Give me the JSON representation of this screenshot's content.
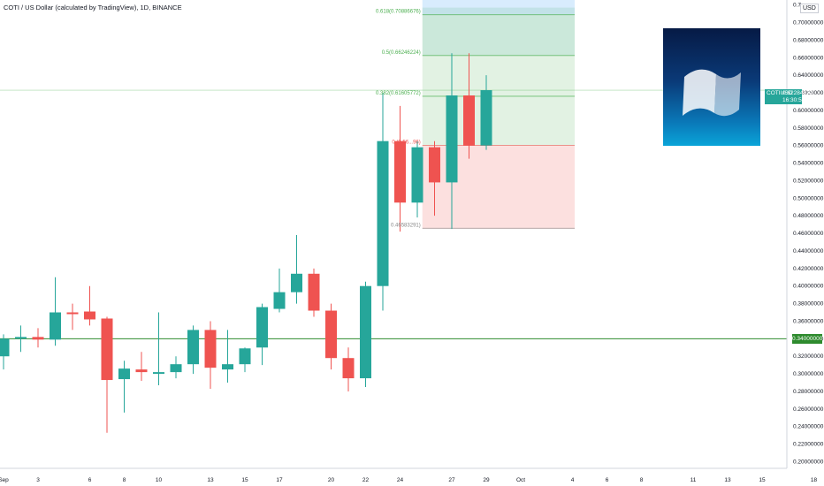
{
  "header": {
    "title": "COTI / US Dollar (calculated by TradingView), 1D, BINANCE"
  },
  "currency_button": "USD",
  "symbol_tag": {
    "symbol": "COTIUSD",
    "price": "0.62284874",
    "countdown": "16:30:58"
  },
  "horizontal_line_tag": "0.34000000",
  "colors": {
    "up": "#26a69a",
    "down": "#ef5350",
    "level_line": "#2e8b2e",
    "fib": "#4caf50"
  },
  "chart_data": {
    "type": "candlestick",
    "title": "COTI / US Dollar (calculated by TradingView), 1D, BINANCE",
    "ylim": [
      0.19,
      0.72
    ],
    "y_ticks": [
      "0.20000000",
      "0.22000000",
      "0.24000000",
      "0.26000000",
      "0.28000000",
      "0.30000000",
      "0.32000000",
      "0.34000000",
      "0.36000000",
      "0.38000000",
      "0.40000000",
      "0.42000000",
      "0.44000000",
      "0.46000000",
      "0.48000000",
      "0.50000000",
      "0.52000000",
      "0.54000000",
      "0.56000000",
      "0.58000000",
      "0.60000000",
      "0.62000000",
      "0.64000000",
      "0.66000000",
      "0.68000000",
      "0.70000000",
      "0.7"
    ],
    "x_ticks": [
      {
        "label": "Sep",
        "day": 1
      },
      {
        "label": "3",
        "day": 3
      },
      {
        "label": "6",
        "day": 6
      },
      {
        "label": "8",
        "day": 8
      },
      {
        "label": "10",
        "day": 10
      },
      {
        "label": "13",
        "day": 13
      },
      {
        "label": "15",
        "day": 15
      },
      {
        "label": "17",
        "day": 17
      },
      {
        "label": "20",
        "day": 20
      },
      {
        "label": "22",
        "day": 22
      },
      {
        "label": "24",
        "day": 24
      },
      {
        "label": "27",
        "day": 27
      },
      {
        "label": "29",
        "day": 29
      },
      {
        "label": "Oct",
        "day": 31
      },
      {
        "label": "4",
        "day": 34
      },
      {
        "label": "6",
        "day": 36
      },
      {
        "label": "8",
        "day": 38
      },
      {
        "label": "11",
        "day": 41
      },
      {
        "label": "13",
        "day": 43
      },
      {
        "label": "15",
        "day": 45
      },
      {
        "label": "18",
        "day": 48
      }
    ],
    "candles": [
      {
        "date": "Sep 1",
        "o": 0.32,
        "h": 0.345,
        "l": 0.305,
        "c": 0.34
      },
      {
        "date": "Sep 2",
        "o": 0.34,
        "h": 0.355,
        "l": 0.325,
        "c": 0.342
      },
      {
        "date": "Sep 3",
        "o": 0.342,
        "h": 0.352,
        "l": 0.33,
        "c": 0.339
      },
      {
        "date": "Sep 4",
        "o": 0.339,
        "h": 0.41,
        "l": 0.332,
        "c": 0.37
      },
      {
        "date": "Sep 5",
        "o": 0.37,
        "h": 0.38,
        "l": 0.35,
        "c": 0.368
      },
      {
        "date": "Sep 6",
        "o": 0.371,
        "h": 0.4,
        "l": 0.355,
        "c": 0.362
      },
      {
        "date": "Sep 7",
        "o": 0.363,
        "h": 0.365,
        "l": 0.233,
        "c": 0.293
      },
      {
        "date": "Sep 8",
        "o": 0.294,
        "h": 0.315,
        "l": 0.256,
        "c": 0.306
      },
      {
        "date": "Sep 9",
        "o": 0.305,
        "h": 0.325,
        "l": 0.292,
        "c": 0.302
      },
      {
        "date": "Sep 10",
        "o": 0.3,
        "h": 0.37,
        "l": 0.287,
        "c": 0.302
      },
      {
        "date": "Sep 11",
        "o": 0.302,
        "h": 0.32,
        "l": 0.295,
        "c": 0.311
      },
      {
        "date": "Sep 12",
        "o": 0.311,
        "h": 0.355,
        "l": 0.3,
        "c": 0.35
      },
      {
        "date": "Sep 13",
        "o": 0.35,
        "h": 0.36,
        "l": 0.283,
        "c": 0.307
      },
      {
        "date": "Sep 14",
        "o": 0.305,
        "h": 0.35,
        "l": 0.29,
        "c": 0.311
      },
      {
        "date": "Sep 15",
        "o": 0.311,
        "h": 0.33,
        "l": 0.302,
        "c": 0.329
      },
      {
        "date": "Sep 16",
        "o": 0.33,
        "h": 0.38,
        "l": 0.31,
        "c": 0.376
      },
      {
        "date": "Sep 17",
        "o": 0.374,
        "h": 0.42,
        "l": 0.37,
        "c": 0.393
      },
      {
        "date": "Sep 18",
        "o": 0.393,
        "h": 0.458,
        "l": 0.38,
        "c": 0.414
      },
      {
        "date": "Sep 19",
        "o": 0.414,
        "h": 0.42,
        "l": 0.365,
        "c": 0.372
      },
      {
        "date": "Sep 20",
        "o": 0.372,
        "h": 0.38,
        "l": 0.305,
        "c": 0.318
      },
      {
        "date": "Sep 21",
        "o": 0.318,
        "h": 0.33,
        "l": 0.28,
        "c": 0.295
      },
      {
        "date": "Sep 22",
        "o": 0.295,
        "h": 0.405,
        "l": 0.285,
        "c": 0.4
      },
      {
        "date": "Sep 23",
        "o": 0.4,
        "h": 0.62,
        "l": 0.372,
        "c": 0.565
      },
      {
        "date": "Sep 24",
        "o": 0.565,
        "h": 0.605,
        "l": 0.462,
        "c": 0.495
      },
      {
        "date": "Sep 25",
        "o": 0.495,
        "h": 0.565,
        "l": 0.478,
        "c": 0.558
      },
      {
        "date": "Sep 26",
        "o": 0.558,
        "h": 0.565,
        "l": 0.48,
        "c": 0.518
      },
      {
        "date": "Sep 27",
        "o": 0.518,
        "h": 0.665,
        "l": 0.465,
        "c": 0.617
      },
      {
        "date": "Sep 28",
        "o": 0.617,
        "h": 0.665,
        "l": 0.545,
        "c": 0.56
      },
      {
        "date": "Sep 29",
        "o": 0.56,
        "h": 0.64,
        "l": 0.555,
        "c": 0.623
      }
    ],
    "horizontal_line": 0.34,
    "fib_levels": [
      {
        "ratio": "0.618",
        "value": 0.70886676,
        "label": "0.618(0.70886676)"
      },
      {
        "ratio": "0.5",
        "value": 0.66246224,
        "label": "0.5(0.66246224)"
      },
      {
        "ratio": "0.382",
        "value": 0.61605772,
        "label": "0.382(0.61605772)"
      },
      {
        "ratio": "0",
        "value": 0.56,
        "label": "0.(0.56...96)"
      },
      {
        "ratio": "",
        "value": 0.46583291,
        "label": "0.46583291)"
      }
    ],
    "long_position": {
      "entry": 0.56,
      "target": 0.72,
      "stop": 0.465,
      "from_day": 25.5,
      "to_day": 48
    }
  }
}
